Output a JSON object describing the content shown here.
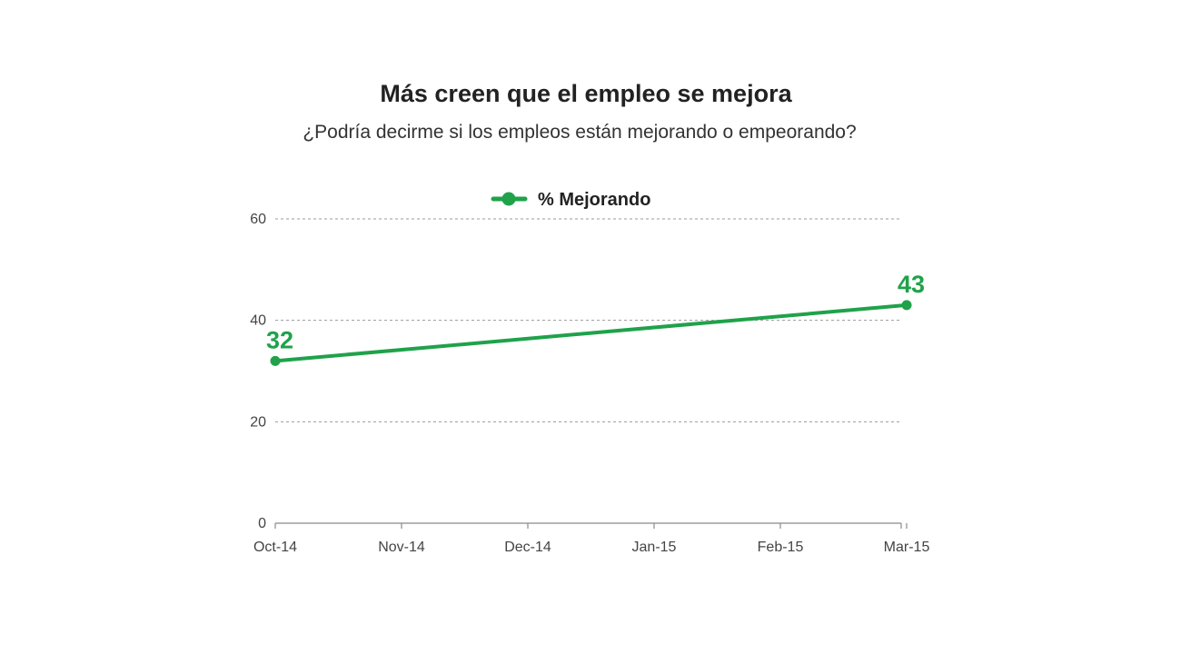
{
  "chart_data": {
    "type": "line",
    "title": "Más creen que el empleo se mejora",
    "subtitle": "¿Podría decirme si los empleos están mejorando o empeorando?",
    "categories": [
      "Oct-14",
      "Nov-14",
      "Dec-14",
      "Jan-15",
      "Feb-15",
      "Mar-15"
    ],
    "yticks": [
      0,
      20,
      40,
      60
    ],
    "ylim": [
      0,
      60
    ],
    "grid": true,
    "legend_position": "top-center",
    "series": [
      {
        "name": "% Mejorando",
        "color": "#1fa24a",
        "points": [
          {
            "x": "Oct-14",
            "y": 32,
            "label": "32"
          },
          {
            "x": "Mar-15",
            "y": 43,
            "label": "43"
          }
        ]
      }
    ]
  }
}
